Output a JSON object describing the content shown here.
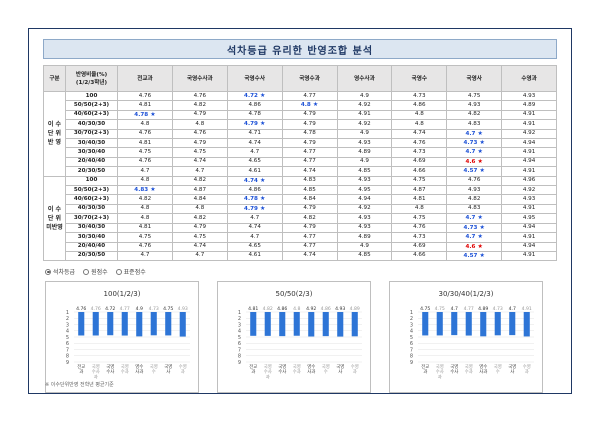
{
  "title": "석차등급 유리한 반영조합 분석",
  "columns": [
    "구분",
    "반영비율(%)\n(1/2/3학년)",
    "전교과",
    "국영수사과",
    "국영수사",
    "국영수과",
    "영수사과",
    "국영수",
    "국영사",
    "수영과"
  ],
  "groups": [
    {
      "label": "이 수\n단 위\n반 영",
      "rows": [
        {
          "ratio": "100",
          "cells": [
            {
              "v": "4.76"
            },
            {
              "v": "4.76"
            },
            {
              "v": "4.72",
              "s": "blue"
            },
            {
              "v": "4.77"
            },
            {
              "v": "4.9"
            },
            {
              "v": "4.73"
            },
            {
              "v": "4.75"
            },
            {
              "v": "4.93"
            }
          ]
        },
        {
          "ratio": "50/50(2+3)",
          "cells": [
            {
              "v": "4.81"
            },
            {
              "v": "4.82"
            },
            {
              "v": "4.86"
            },
            {
              "v": "4.8",
              "s": "blue"
            },
            {
              "v": "4.92"
            },
            {
              "v": "4.86"
            },
            {
              "v": "4.93"
            },
            {
              "v": "4.89"
            }
          ]
        },
        {
          "ratio": "40/60(2+3)",
          "cells": [
            {
              "v": "4.78",
              "s": "blue"
            },
            {
              "v": "4.79"
            },
            {
              "v": "4.78"
            },
            {
              "v": "4.79"
            },
            {
              "v": "4.91"
            },
            {
              "v": "4.8"
            },
            {
              "v": "4.82"
            },
            {
              "v": "4.91"
            }
          ]
        },
        {
          "ratio": "40/30/30",
          "cells": [
            {
              "v": "4.8"
            },
            {
              "v": "4.8"
            },
            {
              "v": "4.79",
              "s": "blue"
            },
            {
              "v": "4.79"
            },
            {
              "v": "4.92"
            },
            {
              "v": "4.8"
            },
            {
              "v": "4.83"
            },
            {
              "v": "4.91"
            }
          ]
        },
        {
          "ratio": "30/70(2+3)",
          "cells": [
            {
              "v": "4.76"
            },
            {
              "v": "4.76"
            },
            {
              "v": "4.71"
            },
            {
              "v": "4.78"
            },
            {
              "v": "4.9"
            },
            {
              "v": "4.74"
            },
            {
              "v": "4.7",
              "s": "blue"
            },
            {
              "v": "4.92"
            }
          ]
        },
        {
          "ratio": "30/40/30",
          "cells": [
            {
              "v": "4.81"
            },
            {
              "v": "4.79"
            },
            {
              "v": "4.74"
            },
            {
              "v": "4.79"
            },
            {
              "v": "4.93"
            },
            {
              "v": "4.76"
            },
            {
              "v": "4.73",
              "s": "blue"
            },
            {
              "v": "4.94"
            }
          ]
        },
        {
          "ratio": "30/30/40",
          "cells": [
            {
              "v": "4.75"
            },
            {
              "v": "4.75"
            },
            {
              "v": "4.7"
            },
            {
              "v": "4.77"
            },
            {
              "v": "4.89"
            },
            {
              "v": "4.73"
            },
            {
              "v": "4.7",
              "s": "blue"
            },
            {
              "v": "4.91"
            }
          ]
        },
        {
          "ratio": "20/40/40",
          "cells": [
            {
              "v": "4.76"
            },
            {
              "v": "4.74"
            },
            {
              "v": "4.65"
            },
            {
              "v": "4.77"
            },
            {
              "v": "4.9"
            },
            {
              "v": "4.69"
            },
            {
              "v": "4.6",
              "s": "red"
            },
            {
              "v": "4.94"
            }
          ]
        },
        {
          "ratio": "20/30/50",
          "cells": [
            {
              "v": "4.7"
            },
            {
              "v": "4.7"
            },
            {
              "v": "4.61"
            },
            {
              "v": "4.74"
            },
            {
              "v": "4.85"
            },
            {
              "v": "4.66"
            },
            {
              "v": "4.57",
              "s": "blue"
            },
            {
              "v": "4.91"
            }
          ]
        }
      ]
    },
    {
      "label": "이 수\n단 위\n미반영",
      "rows": [
        {
          "ratio": "100",
          "cells": [
            {
              "v": "4.8"
            },
            {
              "v": "4.82"
            },
            {
              "v": "4.74",
              "s": "blue"
            },
            {
              "v": "4.83"
            },
            {
              "v": "4.93"
            },
            {
              "v": "4.75"
            },
            {
              "v": "4.76"
            },
            {
              "v": "4.96"
            }
          ]
        },
        {
          "ratio": "50/50(2+3)",
          "cells": [
            {
              "v": "4.83",
              "s": "blue"
            },
            {
              "v": "4.87"
            },
            {
              "v": "4.86"
            },
            {
              "v": "4.85"
            },
            {
              "v": "4.95"
            },
            {
              "v": "4.87"
            },
            {
              "v": "4.93"
            },
            {
              "v": "4.92"
            }
          ]
        },
        {
          "ratio": "40/60(2+3)",
          "cells": [
            {
              "v": "4.82"
            },
            {
              "v": "4.84"
            },
            {
              "v": "4.78",
              "s": "blue"
            },
            {
              "v": "4.84"
            },
            {
              "v": "4.94"
            },
            {
              "v": "4.81"
            },
            {
              "v": "4.82"
            },
            {
              "v": "4.93"
            }
          ]
        },
        {
          "ratio": "40/30/30",
          "cells": [
            {
              "v": "4.8"
            },
            {
              "v": "4.8"
            },
            {
              "v": "4.79",
              "s": "blue"
            },
            {
              "v": "4.79"
            },
            {
              "v": "4.92"
            },
            {
              "v": "4.8"
            },
            {
              "v": "4.83"
            },
            {
              "v": "4.91"
            }
          ]
        },
        {
          "ratio": "30/70(2+3)",
          "cells": [
            {
              "v": "4.8"
            },
            {
              "v": "4.82"
            },
            {
              "v": "4.7"
            },
            {
              "v": "4.82"
            },
            {
              "v": "4.93"
            },
            {
              "v": "4.75"
            },
            {
              "v": "4.7",
              "s": "blue"
            },
            {
              "v": "4.95"
            }
          ]
        },
        {
          "ratio": "30/40/30",
          "cells": [
            {
              "v": "4.81"
            },
            {
              "v": "4.79"
            },
            {
              "v": "4.74"
            },
            {
              "v": "4.79"
            },
            {
              "v": "4.93"
            },
            {
              "v": "4.76"
            },
            {
              "v": "4.73",
              "s": "blue"
            },
            {
              "v": "4.94"
            }
          ]
        },
        {
          "ratio": "30/30/40",
          "cells": [
            {
              "v": "4.75"
            },
            {
              "v": "4.75"
            },
            {
              "v": "4.7"
            },
            {
              "v": "4.77"
            },
            {
              "v": "4.89"
            },
            {
              "v": "4.73"
            },
            {
              "v": "4.7",
              "s": "blue"
            },
            {
              "v": "4.91"
            }
          ]
        },
        {
          "ratio": "20/40/40",
          "cells": [
            {
              "v": "4.76"
            },
            {
              "v": "4.74"
            },
            {
              "v": "4.65"
            },
            {
              "v": "4.77"
            },
            {
              "v": "4.9"
            },
            {
              "v": "4.69"
            },
            {
              "v": "4.6",
              "s": "red"
            },
            {
              "v": "4.94"
            }
          ]
        },
        {
          "ratio": "20/30/50",
          "cells": [
            {
              "v": "4.7"
            },
            {
              "v": "4.7"
            },
            {
              "v": "4.61"
            },
            {
              "v": "4.74"
            },
            {
              "v": "4.85"
            },
            {
              "v": "4.66"
            },
            {
              "v": "4.57",
              "s": "blue"
            },
            {
              "v": "4.91"
            }
          ]
        }
      ]
    }
  ],
  "star_glyph": "★",
  "star_colors": {
    "blue": "#1a4fd6",
    "red": "#e00000"
  },
  "radios": [
    {
      "label": "석차등급",
      "selected": true
    },
    {
      "label": "원점수",
      "selected": false
    },
    {
      "label": "표준점수",
      "selected": false
    }
  ],
  "footnote": "※ 이수단위반영 전학년 평균기준",
  "chart_data": [
    {
      "type": "bar",
      "title": "100(1/2/3)",
      "categories": [
        "전교과",
        "국영수사과",
        "국영수사",
        "국영수과",
        "영수사과",
        "국영수",
        "국영사",
        "수영과"
      ],
      "values": [
        4.76,
        4.76,
        4.72,
        4.77,
        4.9,
        4.73,
        4.75,
        4.93
      ],
      "yticks": [
        "1",
        "2",
        "3",
        "4",
        "5",
        "6",
        "7",
        "8",
        "9"
      ],
      "ylim": [
        1,
        9
      ],
      "y_inverted": true,
      "bar_color": "#2e75d6"
    },
    {
      "type": "bar",
      "title": "50/50(2/3)",
      "categories": [
        "전교과",
        "국영수사과",
        "국영수사",
        "국영수과",
        "영수사과",
        "국영수",
        "국영사",
        "수영과"
      ],
      "values": [
        4.81,
        4.82,
        4.86,
        4.8,
        4.92,
        4.86,
        4.93,
        4.89
      ],
      "yticks": [
        "1",
        "2",
        "3",
        "4",
        "5",
        "6",
        "7",
        "8",
        "9"
      ],
      "ylim": [
        1,
        9
      ],
      "y_inverted": true,
      "bar_color": "#2e75d6"
    },
    {
      "type": "bar",
      "title": "30/30/40(1/2/3)",
      "categories": [
        "전교과",
        "국영수사과",
        "국영수사",
        "국영수과",
        "영수사과",
        "국영수",
        "국영사",
        "수영과"
      ],
      "values": [
        4.75,
        4.75,
        4.7,
        4.77,
        4.89,
        4.73,
        4.7,
        4.91
      ],
      "yticks": [
        "1",
        "2",
        "3",
        "4",
        "5",
        "6",
        "7",
        "8",
        "9"
      ],
      "ylim": [
        1,
        9
      ],
      "y_inverted": true,
      "bar_color": "#2e75d6"
    }
  ]
}
